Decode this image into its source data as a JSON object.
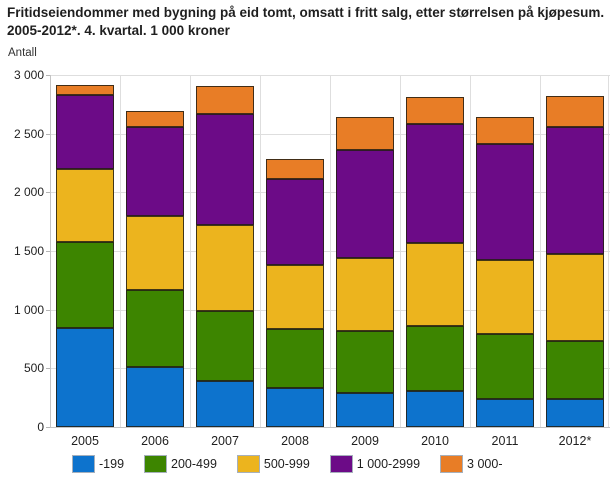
{
  "title": "Fritidseiendommer med bygning på eid tomt, omsatt i fritt salg, etter størrelsen på kjøpesum. 2005-2012*. 4. kvartal. 1 000 kroner",
  "chart_data": {
    "type": "bar",
    "stacked": true,
    "title": "Fritidseiendommer med bygning på eid tomt, omsatt i fritt salg, etter størrelsen på kjøpesum. 2005-2012*. 4. kvartal. 1 000 kroner",
    "ylabel": "Antall",
    "xlabel": "",
    "categories": [
      "2005",
      "2006",
      "2007",
      "2008",
      "2009",
      "2010",
      "2011",
      "2012*"
    ],
    "series": [
      {
        "name": "-199",
        "color": "#0d73cd",
        "values": [
          840,
          515,
          395,
          335,
          290,
          305,
          235,
          240
        ]
      },
      {
        "name": "200-499",
        "color": "#3d8500",
        "values": [
          740,
          655,
          590,
          500,
          530,
          555,
          555,
          490
        ]
      },
      {
        "name": "500-999",
        "color": "#ecb41e",
        "values": [
          620,
          625,
          740,
          545,
          620,
          710,
          635,
          745
        ]
      },
      {
        "name": "1 000-2999",
        "color": "#6c0b87",
        "values": [
          630,
          760,
          945,
          730,
          920,
          1010,
          985,
          1085
        ]
      },
      {
        "name": "3 000-",
        "color": "#e87d26",
        "values": [
          85,
          140,
          240,
          175,
          280,
          230,
          235,
          265
        ]
      }
    ],
    "totals": [
      2915,
      2695,
      2910,
      2285,
      2640,
      2810,
      2645,
      2825
    ],
    "ylim": [
      0,
      3000
    ],
    "ytick_interval": 500,
    "ytick_labels": [
      "0",
      "500",
      "1 000",
      "1 500",
      "2 000",
      "2 500",
      "3 000"
    ],
    "grid": true,
    "legend_position": "bottom"
  },
  "colors": {
    "background": "#ffffff",
    "gridline": "#dedede",
    "axis_line": "#c4c4c4",
    "text": "#1f1f1f",
    "bar_border": "#231e14"
  }
}
